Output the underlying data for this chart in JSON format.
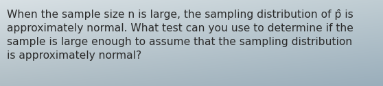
{
  "text": "When the sample size n is large, the sampling distribution of p̂ is\napproximately normal. What test can you use to determine if the\nsample is large enough to assume that the sampling distribution\nis approximately normal?",
  "bg_tl": "#d8e0e4",
  "bg_tr": "#c0cdd3",
  "bg_bl": "#b0bec5",
  "bg_br": "#9aaebb",
  "text_color": "#2a2a2a",
  "font_size": 11.2,
  "fig_width": 5.58,
  "fig_height": 1.26,
  "dpi": 100
}
